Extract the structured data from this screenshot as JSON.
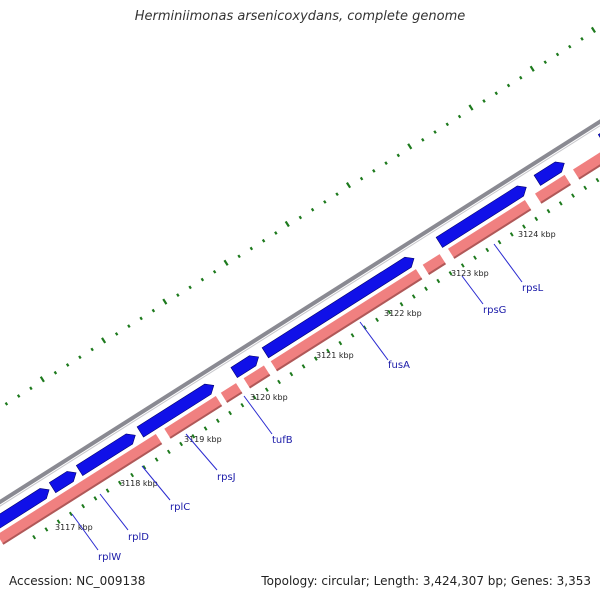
{
  "title": "Herminiimonas arsenicoxydans, complete genome",
  "footer": {
    "accession": "Accession: NC_009138",
    "topology": "Topology: circular; Length: 3,424,307 bp; Genes: 3,353"
  },
  "colors": {
    "backbone": "#8a8a92",
    "forward_gene": "#1010e8",
    "reverse_gene": "#f08080",
    "reverse_gene_edge": "#b05858",
    "other_feature": "#ff8c00",
    "gc_ticks": "#1d7a1d",
    "label_line": "#2a2ad0"
  },
  "ticks": [
    {
      "label": "3117 kbp"
    },
    {
      "label": "3118 kbp"
    },
    {
      "label": "3119 kbp"
    },
    {
      "label": "3120 kbp"
    },
    {
      "label": "3121 kbp"
    },
    {
      "label": "3122 kbp"
    },
    {
      "label": "3123 kbp"
    },
    {
      "label": "3124 kbp"
    }
  ],
  "genes": [
    {
      "label": "rplW"
    },
    {
      "label": "rplD"
    },
    {
      "label": "rplC"
    },
    {
      "label": "rpsJ"
    },
    {
      "label": "tufB"
    },
    {
      "label": "fusA"
    },
    {
      "label": "rpsG"
    },
    {
      "label": "rpsL"
    }
  ]
}
